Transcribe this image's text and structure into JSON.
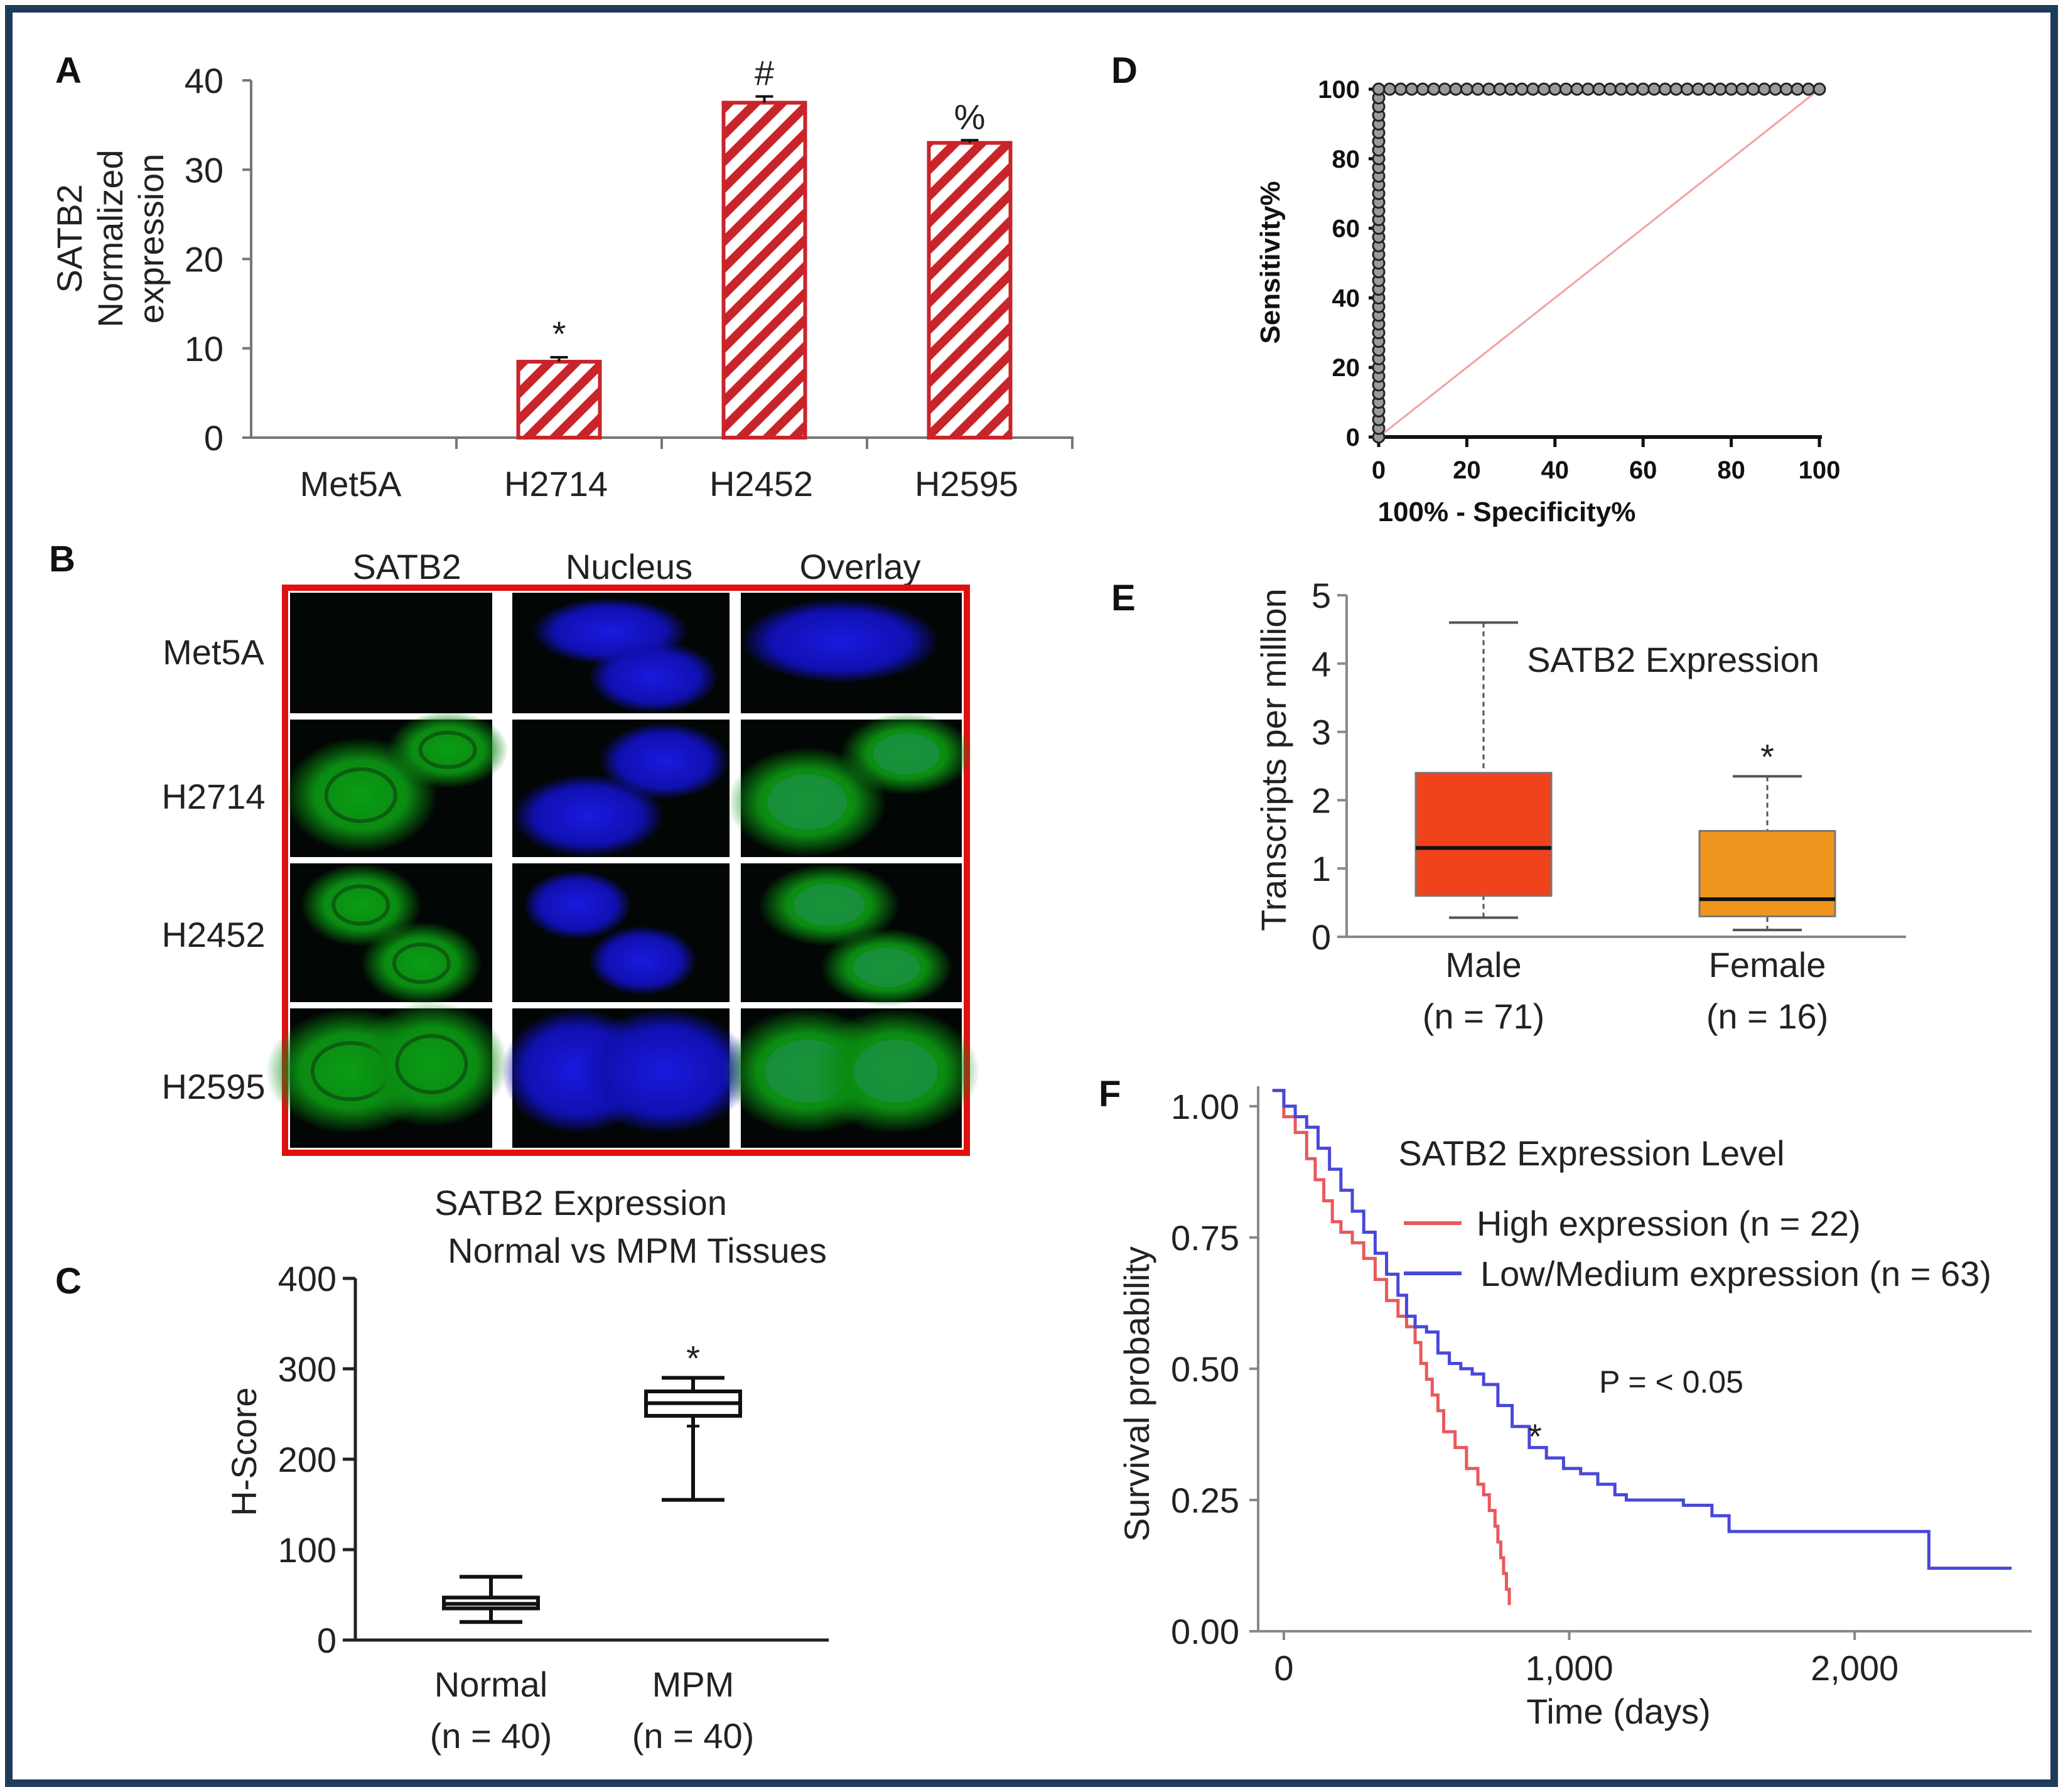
{
  "colors": {
    "frame": "#1f3b5c",
    "bar_hatch": "#c8242a",
    "box_male": "#f0431b",
    "box_female": "#f0961e",
    "roc_reference": "#f4a0a0",
    "km_high": "#e8595c",
    "km_low": "#4848d8",
    "if_border": "#e01010",
    "green": "#3ad63a",
    "blue": "#2a3cff"
  },
  "panels": {
    "A": {
      "letter": "A"
    },
    "B": {
      "letter": "B",
      "columns": [
        "SATB2",
        "Nucleus",
        "Overlay"
      ],
      "rows": [
        "Met5A",
        "H2714",
        "H2452",
        "H2595"
      ]
    },
    "C": {
      "letter": "C"
    },
    "D": {
      "letter": "D"
    },
    "E": {
      "letter": "E"
    },
    "F": {
      "letter": "F"
    }
  },
  "chart_data": [
    {
      "id": "A",
      "type": "bar",
      "title": "",
      "ylabel_lines": [
        "SATB2",
        "Normalized",
        "expression"
      ],
      "categories": [
        "Met5A",
        "H2714",
        "H2452",
        "H2595"
      ],
      "values": [
        0,
        8.5,
        37.5,
        33.0
      ],
      "errors": [
        0,
        0.5,
        0.7,
        0.3
      ],
      "significance": [
        "",
        "*",
        "#",
        "%"
      ],
      "ylim": [
        0,
        40
      ],
      "yticks": [
        0,
        10,
        20,
        30,
        40
      ],
      "ytick_labels": [
        "0",
        "10",
        "20",
        "30",
        "40"
      ]
    },
    {
      "id": "C",
      "type": "box",
      "title_lines": [
        "SATB2 Expression",
        "Normal vs MPM Tissues"
      ],
      "ylabel": "H-Score",
      "categories": [
        "Normal",
        "MPM"
      ],
      "n_labels": [
        "(n = 40)",
        "(n = 40)"
      ],
      "boxes": [
        {
          "min": 20,
          "q1": 35,
          "median": 40,
          "q3": 47,
          "max": 70
        },
        {
          "min": 155,
          "q1": 248,
          "median": 262,
          "q3": 275,
          "max": 290
        }
      ],
      "outliers": [
        [],
        [
          237
        ]
      ],
      "significance": [
        "",
        "*"
      ],
      "ylim": [
        0,
        400
      ],
      "yticks": [
        0,
        100,
        200,
        300,
        400
      ],
      "ytick_labels": [
        "0",
        "100",
        "200",
        "300",
        "400"
      ]
    },
    {
      "id": "D",
      "type": "scatter",
      "chart_kind": "roc",
      "xlabel": "100% - Specificity%",
      "ylabel": "Sensitivity%",
      "xlim": [
        0,
        100
      ],
      "ylim": [
        0,
        100
      ],
      "xticks": [
        0,
        20,
        40,
        60,
        80,
        100
      ],
      "xtick_labels": [
        "0",
        "20",
        "40",
        "60",
        "80",
        "100"
      ],
      "yticks": [
        0,
        20,
        40,
        60,
        80,
        100
      ],
      "ytick_labels": [
        "0",
        "20",
        "40",
        "60",
        "80",
        "100"
      ],
      "roc_points": [
        [
          0,
          0
        ],
        [
          0,
          2.5
        ],
        [
          0,
          5
        ],
        [
          0,
          7.5
        ],
        [
          0,
          10
        ],
        [
          0,
          12.5
        ],
        [
          0,
          15
        ],
        [
          0,
          17.5
        ],
        [
          0,
          20
        ],
        [
          0,
          22.5
        ],
        [
          0,
          25
        ],
        [
          0,
          27.5
        ],
        [
          0,
          30
        ],
        [
          0,
          32.5
        ],
        [
          0,
          35
        ],
        [
          0,
          37.5
        ],
        [
          0,
          40
        ],
        [
          0,
          42.5
        ],
        [
          0,
          45
        ],
        [
          0,
          47.5
        ],
        [
          0,
          50
        ],
        [
          0,
          52.5
        ],
        [
          0,
          55
        ],
        [
          0,
          57.5
        ],
        [
          0,
          60
        ],
        [
          0,
          62.5
        ],
        [
          0,
          65
        ],
        [
          0,
          67.5
        ],
        [
          0,
          70
        ],
        [
          0,
          72.5
        ],
        [
          0,
          75
        ],
        [
          0,
          77.5
        ],
        [
          0,
          80
        ],
        [
          0,
          82.5
        ],
        [
          0,
          85
        ],
        [
          0,
          87.5
        ],
        [
          0,
          90
        ],
        [
          0,
          92.5
        ],
        [
          0,
          95
        ],
        [
          0,
          97.5
        ],
        [
          0,
          100
        ],
        [
          2.5,
          100
        ],
        [
          5,
          100
        ],
        [
          7.5,
          100
        ],
        [
          10,
          100
        ],
        [
          12.5,
          100
        ],
        [
          15,
          100
        ],
        [
          17.5,
          100
        ],
        [
          20,
          100
        ],
        [
          22.5,
          100
        ],
        [
          25,
          100
        ],
        [
          27.5,
          100
        ],
        [
          30,
          100
        ],
        [
          32.5,
          100
        ],
        [
          35,
          100
        ],
        [
          37.5,
          100
        ],
        [
          40,
          100
        ],
        [
          42.5,
          100
        ],
        [
          45,
          100
        ],
        [
          47.5,
          100
        ],
        [
          50,
          100
        ],
        [
          52.5,
          100
        ],
        [
          55,
          100
        ],
        [
          57.5,
          100
        ],
        [
          60,
          100
        ],
        [
          62.5,
          100
        ],
        [
          65,
          100
        ],
        [
          67.5,
          100
        ],
        [
          70,
          100
        ],
        [
          72.5,
          100
        ],
        [
          75,
          100
        ],
        [
          77.5,
          100
        ],
        [
          80,
          100
        ],
        [
          82.5,
          100
        ],
        [
          85,
          100
        ],
        [
          87.5,
          100
        ],
        [
          90,
          100
        ],
        [
          92.5,
          100
        ],
        [
          95,
          100
        ],
        [
          97.5,
          100
        ],
        [
          100,
          100
        ]
      ],
      "reference_line": [
        [
          0,
          0
        ],
        [
          100,
          100
        ]
      ]
    },
    {
      "id": "E",
      "type": "box",
      "title": "SATB2 Expression",
      "ylabel": "Transcripts per million",
      "categories": [
        "Male",
        "Female"
      ],
      "n_labels": [
        "(n = 71)",
        "(n = 16)"
      ],
      "boxes": [
        {
          "min": 0.28,
          "q1": 0.6,
          "median": 1.3,
          "q3": 2.4,
          "max": 4.6
        },
        {
          "min": 0.1,
          "q1": 0.3,
          "median": 0.55,
          "q3": 1.55,
          "max": 2.35
        }
      ],
      "significance": [
        "",
        "*"
      ],
      "ylim": [
        0,
        5
      ],
      "yticks": [
        0,
        1,
        2,
        3,
        4,
        5
      ],
      "ytick_labels": [
        "0",
        "1",
        "2",
        "3",
        "4",
        "5"
      ]
    },
    {
      "id": "F",
      "type": "line",
      "chart_kind": "kaplan-meier",
      "xlabel": "Time (days)",
      "ylabel": "Survival probability",
      "legend_title": "SATB2 Expression Level",
      "annotation": "P = < 0.05",
      "significance": "*",
      "xlim": [
        -90,
        2620
      ],
      "ylim": [
        0,
        1.05
      ],
      "xticks": [
        0,
        1000,
        2000
      ],
      "xtick_labels": [
        "0",
        "1,000",
        "2,000"
      ],
      "yticks": [
        0,
        0.25,
        0.5,
        0.75,
        1.0
      ],
      "ytick_labels": [
        "0.00",
        "0.25",
        "0.50",
        "0.75",
        "1.00"
      ],
      "series": [
        {
          "name": "High expression (n = 22)",
          "x": [
            -40,
            0,
            40,
            80,
            110,
            140,
            170,
            200,
            240,
            280,
            320,
            360,
            400,
            430,
            460,
            480,
            500,
            520,
            540,
            560,
            600,
            640,
            680,
            700,
            720,
            740,
            750,
            760,
            770,
            780,
            790
          ],
          "y": [
            1.03,
            0.98,
            0.95,
            0.9,
            0.86,
            0.82,
            0.78,
            0.76,
            0.74,
            0.71,
            0.67,
            0.63,
            0.6,
            0.58,
            0.55,
            0.51,
            0.48,
            0.45,
            0.42,
            0.38,
            0.35,
            0.31,
            0.28,
            0.26,
            0.23,
            0.2,
            0.17,
            0.14,
            0.11,
            0.08,
            0.05
          ]
        },
        {
          "name": "Low/Medium expression (n = 63)",
          "x": [
            -40,
            0,
            40,
            80,
            120,
            160,
            200,
            240,
            280,
            320,
            360,
            400,
            430,
            460,
            500,
            540,
            580,
            620,
            660,
            700,
            750,
            800,
            860,
            920,
            980,
            1040,
            1100,
            1160,
            1200,
            1300,
            1400,
            1500,
            1560,
            1700,
            1900,
            2100,
            2250,
            2260,
            2400,
            2550
          ],
          "y": [
            1.03,
            1.0,
            0.98,
            0.96,
            0.92,
            0.88,
            0.84,
            0.8,
            0.76,
            0.72,
            0.68,
            0.64,
            0.6,
            0.58,
            0.57,
            0.53,
            0.51,
            0.5,
            0.49,
            0.47,
            0.43,
            0.39,
            0.35,
            0.33,
            0.31,
            0.3,
            0.28,
            0.26,
            0.25,
            0.25,
            0.24,
            0.22,
            0.19,
            0.19,
            0.19,
            0.19,
            0.19,
            0.12,
            0.12,
            0.12
          ]
        }
      ]
    }
  ]
}
